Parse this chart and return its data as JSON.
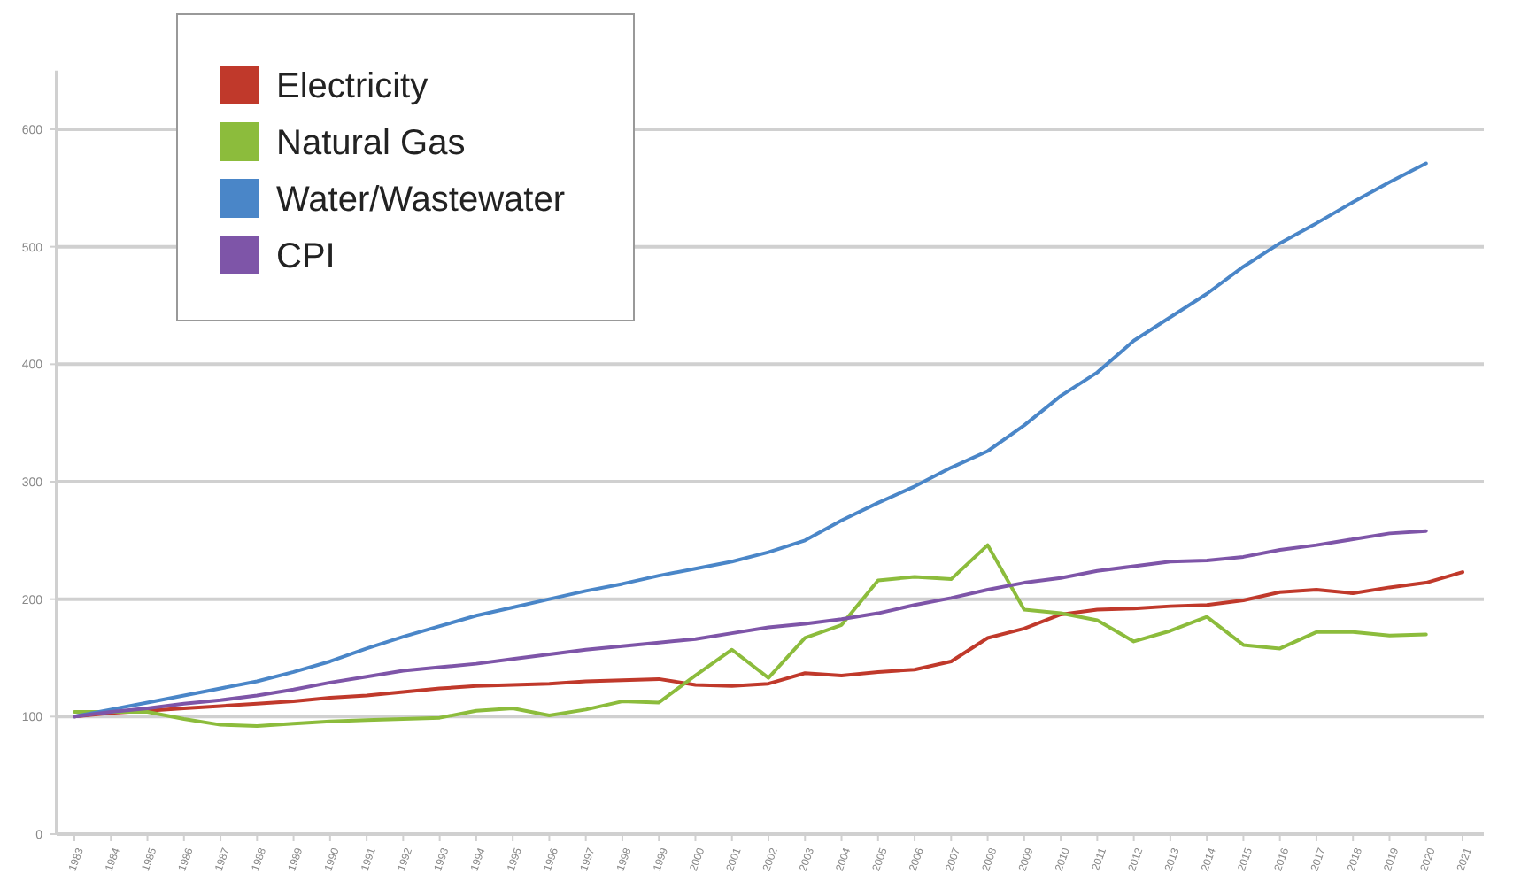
{
  "chart_data": {
    "type": "line",
    "categories": [
      "1983",
      "1984",
      "1985",
      "1986",
      "1987",
      "1988",
      "1989",
      "1990",
      "1991",
      "1992",
      "1993",
      "1994",
      "1995",
      "1996",
      "1997",
      "1998",
      "1999",
      "2000",
      "2001",
      "2002",
      "2003",
      "2004",
      "2005",
      "2006",
      "2007",
      "2008",
      "2009",
      "2010",
      "2011",
      "2012",
      "2013",
      "2014",
      "2015",
      "2016",
      "2017",
      "2018",
      "2019",
      "2020",
      "2021"
    ],
    "series": [
      {
        "name": "Electricity",
        "color": "#c0392b",
        "values": [
          100,
          103,
          105,
          107,
          109,
          111,
          113,
          116,
          118,
          121,
          124,
          126,
          127,
          128,
          130,
          131,
          132,
          127,
          126,
          128,
          137,
          135,
          138,
          140,
          147,
          167,
          175,
          187,
          191,
          192,
          194,
          195,
          199,
          206,
          208,
          205,
          210,
          214,
          223
        ]
      },
      {
        "name": "Natural Gas",
        "color": "#8cbc3c",
        "values": [
          104,
          104,
          104,
          98,
          93,
          92,
          94,
          96,
          97,
          98,
          99,
          105,
          107,
          101,
          106,
          113,
          112,
          135,
          157,
          133,
          167,
          178,
          216,
          219,
          217,
          246,
          191,
          188,
          182,
          164,
          173,
          185,
          161,
          158,
          172,
          172,
          169,
          170,
          null
        ]
      },
      {
        "name": "Water/Wastewater",
        "color": "#4a86c8",
        "values": [
          100,
          106,
          112,
          118,
          124,
          130,
          138,
          147,
          158,
          168,
          177,
          186,
          193,
          200,
          207,
          213,
          220,
          226,
          232,
          240,
          250,
          267,
          282,
          296,
          312,
          326,
          348,
          373,
          393,
          420,
          440,
          460,
          483,
          503,
          520,
          538,
          555,
          571,
          null
        ]
      },
      {
        "name": "CPI",
        "color": "#7e55a8",
        "values": [
          100,
          104,
          107,
          111,
          114,
          118,
          123,
          129,
          134,
          139,
          142,
          145,
          149,
          153,
          157,
          160,
          163,
          166,
          171,
          176,
          179,
          183,
          188,
          195,
          201,
          208,
          214,
          218,
          224,
          228,
          232,
          233,
          236,
          242,
          246,
          251,
          256,
          258,
          null
        ]
      }
    ],
    "ylim": [
      0,
      650
    ],
    "yticks": [
      0,
      100,
      200,
      300,
      400,
      500,
      600
    ],
    "grid": "y",
    "legend": "top left"
  }
}
